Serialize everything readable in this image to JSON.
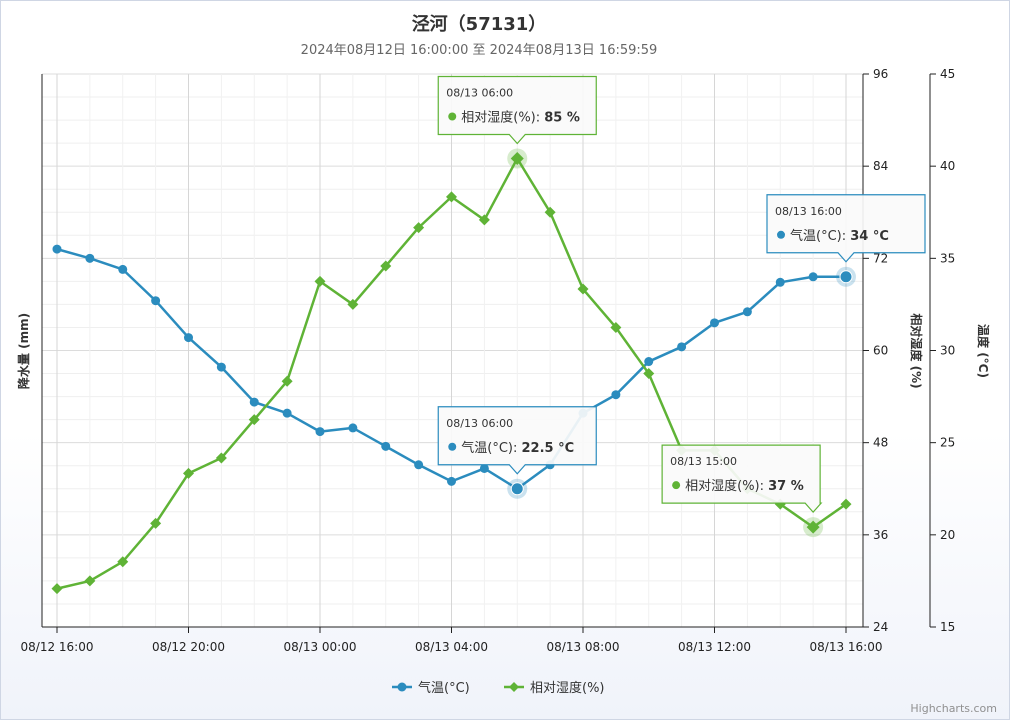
{
  "chart_data": {
    "type": "line",
    "title": "泾河（57131）",
    "subtitle": "2024年08月12日 16:00:00 至 2024年08月13日 16:59:59",
    "x_ticks": [
      "08/12 16:00",
      "08/12 20:00",
      "08/13 00:00",
      "08/13 04:00",
      "08/13 08:00",
      "08/13 12:00",
      "08/13 16:00"
    ],
    "y_axes": {
      "left": {
        "label": "降水量 (mm)"
      },
      "humidity": {
        "label": "相对湿度 (%)",
        "min": 24,
        "max": 96,
        "ticks": [
          24,
          36,
          48,
          60,
          72,
          84,
          96
        ]
      },
      "temperature": {
        "label": "温度 (°C)",
        "min": 15,
        "max": 45,
        "ticks": [
          15,
          20,
          25,
          30,
          35,
          40,
          45
        ]
      }
    },
    "legend_position": "bottom-center",
    "series": [
      {
        "name": "气温(°C)",
        "unit": "°C",
        "color": "#2b8cbe",
        "marker": "circle",
        "axis": "temperature",
        "x_hours": [
          0,
          1,
          2,
          3,
          4,
          5,
          6,
          7,
          8,
          9,
          10,
          11,
          12,
          13,
          14,
          15,
          16,
          17,
          18,
          19,
          20,
          21,
          22,
          23,
          24
        ],
        "values": [
          35.5,
          35.0,
          34.4,
          32.7,
          30.7,
          29.1,
          27.2,
          26.6,
          25.6,
          25.8,
          24.8,
          23.8,
          22.9,
          23.6,
          22.5,
          23.8,
          26.6,
          27.6,
          29.4,
          30.2,
          31.5,
          32.1,
          33.7,
          34.0,
          34.0
        ]
      },
      {
        "name": "相对湿度(%)",
        "unit": "%",
        "color": "#5fb336",
        "marker": "diamond",
        "axis": "humidity",
        "x_hours": [
          0,
          1,
          2,
          3,
          4,
          5,
          6,
          7,
          8,
          9,
          10,
          11,
          12,
          13,
          14,
          15,
          16,
          17,
          18,
          19,
          20,
          21,
          22,
          23,
          24
        ],
        "values": [
          29,
          30,
          32.5,
          37.5,
          44,
          46,
          51,
          56,
          69,
          66,
          71,
          76,
          80,
          77,
          85,
          78,
          68,
          63,
          57,
          47,
          47,
          42,
          40,
          37,
          40
        ]
      }
    ],
    "tooltips": [
      {
        "time": "08/13 06:00",
        "series_label": "相对湿度(%)",
        "value_text": "85 %",
        "color": "#5fb336",
        "x_hour": 14,
        "value": 85,
        "axis": "humidity"
      },
      {
        "time": "08/13 16:00",
        "series_label": "气温(°C)",
        "value_text": "34 °C",
        "color": "#2b8cbe",
        "x_hour": 24,
        "value": 34,
        "axis": "temperature"
      },
      {
        "time": "08/13 06:00",
        "series_label": "气温(°C)",
        "value_text": "22.5 °C",
        "color": "#2b8cbe",
        "x_hour": 14,
        "value": 22.5,
        "axis": "temperature"
      },
      {
        "time": "08/13 15:00",
        "series_label": "相对湿度(%)",
        "value_text": "37 %",
        "color": "#5fb336",
        "x_hour": 23,
        "value": 37,
        "axis": "humidity"
      }
    ],
    "credit": "Highcharts.com"
  }
}
